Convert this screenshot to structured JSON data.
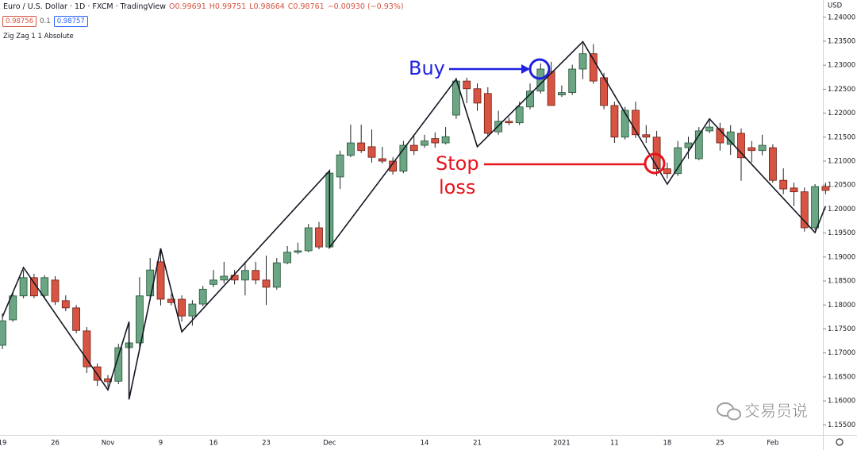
{
  "header": {
    "title": "Euro / U.S. Dollar · 1D · FXCM · TradingView",
    "ohlc": [
      "O0.99691",
      "H0.99751",
      "L0.98664",
      "C0.98761",
      "−0.00930 (−0.93%)"
    ],
    "badges": [
      "0.98756",
      "0.1",
      "0.98757"
    ],
    "indicator": "Zig Zag 1 1 Absolute"
  },
  "annotations": {
    "buy": "Buy",
    "stop": [
      "Stop",
      "loss"
    ],
    "watermark": "交易员说"
  },
  "chart_data": {
    "type": "candlestick",
    "currency": "USD",
    "categories": [
      "19",
      null,
      null,
      null,
      null,
      "26",
      null,
      null,
      null,
      null,
      "Nov",
      null,
      null,
      null,
      null,
      "9",
      null,
      null,
      null,
      null,
      "16",
      null,
      null,
      null,
      null,
      "23",
      null,
      null,
      null,
      null,
      null,
      "Dec",
      null,
      null,
      null,
      null,
      null,
      null,
      null,
      null,
      "14",
      null,
      null,
      null,
      null,
      "21",
      null,
      null,
      null,
      null,
      null,
      null,
      null,
      "2021",
      null,
      null,
      null,
      null,
      "11",
      null,
      null,
      null,
      null,
      "18",
      null,
      null,
      null,
      null,
      "25",
      null,
      null,
      null,
      null,
      "Feb",
      null,
      null,
      null,
      null,
      null
    ],
    "open": [
      1.1716,
      1.1769,
      1.1819,
      1.1857,
      1.182,
      1.1852,
      1.1809,
      1.1794,
      1.1746,
      1.1671,
      1.1646,
      1.1641,
      1.1711,
      1.1721,
      1.1819,
      1.189,
      1.1812,
      1.1812,
      1.1777,
      1.1802,
      1.1843,
      1.1852,
      1.1862,
      1.1852,
      1.1872,
      1.1852,
      1.1837,
      1.1888,
      1.191,
      1.1913,
      1.1961,
      1.1921,
      1.2067,
      1.2112,
      1.2138,
      1.213,
      1.2105,
      1.21,
      1.2079,
      1.2133,
      1.2133,
      1.2147,
      1.2138,
      1.2196,
      1.2267,
      1.2251,
      1.2241,
      1.2161,
      1.2183,
      1.218,
      1.2213,
      1.2246,
      1.2287,
      1.2238,
      1.2243,
      1.2292,
      1.2324,
      1.2274,
      1.2216,
      1.215,
      1.2206,
      1.2155,
      1.215,
      1.2084,
      1.2074,
      1.2128,
      1.2105,
      1.2163,
      1.2168,
      1.2135,
      1.2158,
      1.2128,
      1.2122,
      1.2128,
      1.206,
      1.2044,
      1.2036,
      1.1961,
      1.2047
    ],
    "high": [
      1.1782,
      1.1827,
      1.1873,
      1.1865,
      1.1862,
      1.186,
      1.182,
      1.18,
      1.1754,
      1.1678,
      1.1654,
      1.1719,
      1.1765,
      1.1858,
      1.1898,
      1.1918,
      1.1823,
      1.182,
      1.181,
      1.184,
      1.1873,
      1.189,
      1.1873,
      1.189,
      1.189,
      1.1903,
      1.1898,
      1.1923,
      1.193,
      1.1969,
      1.1973,
      1.208,
      1.2122,
      1.2176,
      1.2176,
      1.2166,
      1.213,
      1.2108,
      1.2142,
      1.2155,
      1.2155,
      1.216,
      1.2171,
      1.2274,
      1.2274,
      1.2262,
      1.2254,
      1.2205,
      1.2191,
      1.2224,
      1.2262,
      1.2304,
      1.2307,
      1.2258,
      1.2301,
      1.2345,
      1.2344,
      1.2284,
      1.2224,
      1.2213,
      1.2224,
      1.2175,
      1.2163,
      1.2097,
      1.2142,
      1.2151,
      1.2171,
      1.2185,
      1.218,
      1.2175,
      1.2168,
      1.2142,
      1.2155,
      1.2135,
      1.2085,
      1.2055,
      1.2045,
      1.2052,
      1.2055
    ],
    "low": [
      1.1708,
      1.1765,
      1.1814,
      1.1814,
      1.1814,
      1.18,
      1.1787,
      1.1741,
      1.1658,
      1.1631,
      1.1628,
      1.1635,
      1.1603,
      1.1711,
      1.181,
      1.1799,
      1.1799,
      1.1765,
      1.1757,
      1.1797,
      1.1837,
      1.1845,
      1.1843,
      1.182,
      1.1843,
      1.18,
      1.1832,
      1.1885,
      1.1906,
      1.191,
      1.1916,
      1.192,
      1.2042,
      1.2108,
      1.2117,
      1.2097,
      1.2095,
      1.2072,
      1.2075,
      1.2113,
      1.2128,
      1.2128,
      1.2135,
      1.2188,
      1.2221,
      1.2205,
      1.2151,
      1.2155,
      1.2175,
      1.2175,
      1.2208,
      1.2241,
      1.2216,
      1.2234,
      1.2238,
      1.2271,
      1.2261,
      1.2208,
      1.2138,
      1.2145,
      1.2148,
      1.2138,
      1.2069,
      1.2064,
      1.2069,
      1.2105,
      1.2102,
      1.2158,
      1.2122,
      1.2113,
      1.2059,
      1.2097,
      1.2112,
      1.2055,
      1.2031,
      1.2006,
      1.1953,
      1.1956,
      1.2031
    ],
    "close": [
      1.1767,
      1.1819,
      1.1857,
      1.1819,
      1.1857,
      1.1807,
      1.1794,
      1.1747,
      1.1671,
      1.1643,
      1.164,
      1.1711,
      1.1721,
      1.1819,
      1.1873,
      1.1812,
      1.1805,
      1.1777,
      1.1802,
      1.1833,
      1.1852,
      1.186,
      1.1852,
      1.1872,
      1.1852,
      1.1837,
      1.1888,
      1.191,
      1.1913,
      1.1961,
      1.1921,
      1.2075,
      1.2113,
      1.2138,
      1.2122,
      1.2108,
      1.21,
      1.2079,
      1.2133,
      1.2122,
      1.2142,
      1.2138,
      1.2151,
      1.2267,
      1.2251,
      1.2221,
      1.2158,
      1.2183,
      1.218,
      1.2213,
      1.2246,
      1.2292,
      1.2216,
      1.2243,
      1.2292,
      1.2324,
      1.2267,
      1.2216,
      1.215,
      1.2206,
      1.2155,
      1.215,
      1.2084,
      1.2074,
      1.2128,
      1.2138,
      1.2163,
      1.2171,
      1.2138,
      1.2161,
      1.2107,
      1.2122,
      1.2133,
      1.206,
      1.2042,
      1.2036,
      1.1961,
      1.2047,
      1.2039
    ],
    "up_color": "#6ba583",
    "down_color": "#d75442",
    "zigzag": {
      "color": "#131722",
      "x": [
        0,
        2,
        10,
        12,
        12,
        15,
        17,
        31,
        31,
        43,
        45,
        55,
        63,
        67,
        77,
        78
      ],
      "values": [
        1.1775,
        1.1878,
        1.1623,
        1.1765,
        1.1603,
        1.1918,
        1.1744,
        1.208,
        1.192,
        1.2271,
        1.213,
        1.2349,
        1.2052,
        1.2188,
        1.1951,
        1.2006
      ]
    },
    "ylim": [
      1.1529,
      1.2436
    ],
    "yticks": [
      {
        "value": 1.24,
        "label": "1.24000"
      },
      {
        "value": 1.235,
        "label": "1.23500"
      },
      {
        "value": 1.23,
        "label": "1.23000"
      },
      {
        "value": 1.225,
        "label": "1.22500"
      },
      {
        "value": 1.22,
        "label": "1.22000"
      },
      {
        "value": 1.215,
        "label": "1.21500"
      },
      {
        "value": 1.21,
        "label": "1.21000"
      },
      {
        "value": 1.205,
        "label": "1.20500"
      },
      {
        "value": 1.2,
        "label": "1.20000"
      },
      {
        "value": 1.195,
        "label": "1.19500"
      },
      {
        "value": 1.19,
        "label": "1.19000"
      },
      {
        "value": 1.185,
        "label": "1.18500"
      },
      {
        "value": 1.18,
        "label": "1.18000"
      },
      {
        "value": 1.175,
        "label": "1.17500"
      },
      {
        "value": 1.17,
        "label": "1.17000"
      },
      {
        "value": 1.165,
        "label": "1.16500"
      },
      {
        "value": 1.16,
        "label": "1.16000"
      },
      {
        "value": 1.155,
        "label": "1.15500"
      }
    ]
  }
}
